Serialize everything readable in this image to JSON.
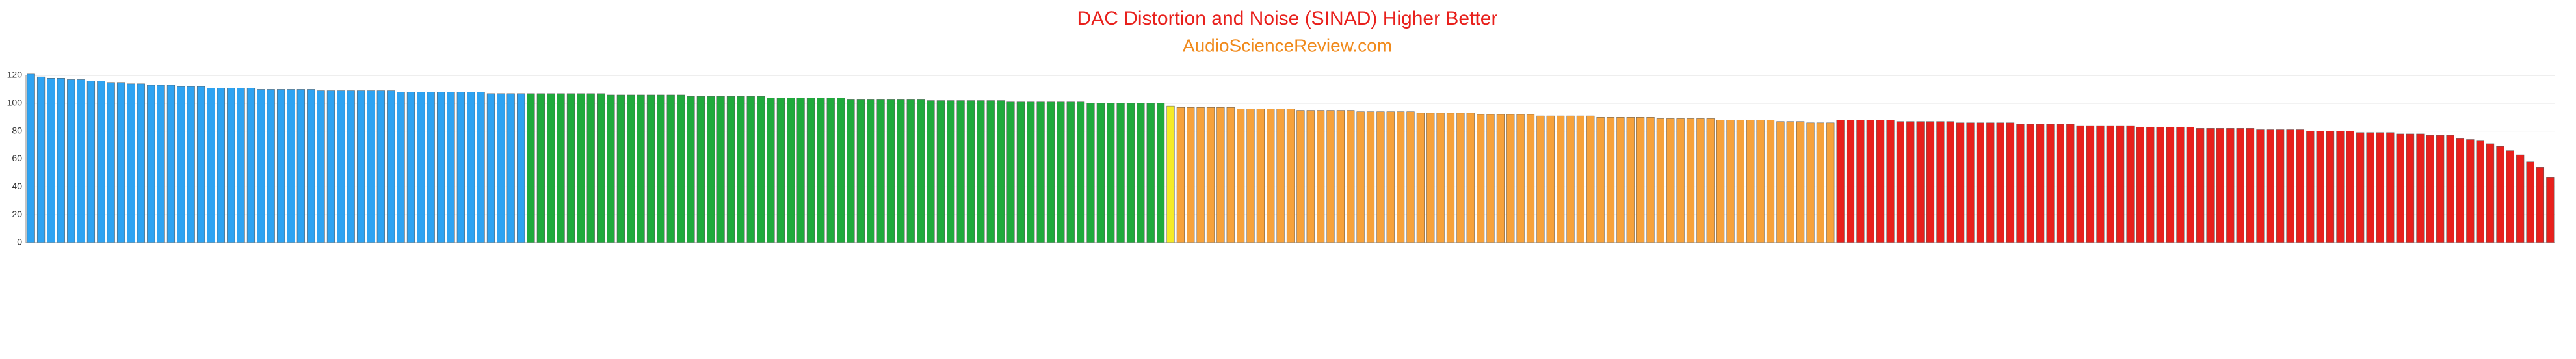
{
  "chart_data": {
    "type": "bar",
    "title": "DAC Distortion and Noise (SINAD) Higher Better",
    "subtitle": "AudioScienceReview.com",
    "ylim": [
      0,
      120
    ],
    "yticks": [
      0,
      20,
      40,
      60,
      80,
      100,
      120
    ],
    "grid": true,
    "groups": [
      {
        "color": "#2ea3f2",
        "values": [
          121,
          119,
          118,
          118,
          117,
          117,
          116,
          116,
          115,
          115,
          114,
          114,
          113,
          113,
          113,
          112,
          112,
          112,
          111,
          111,
          111,
          111,
          111,
          110,
          110,
          110,
          110,
          110,
          110,
          109,
          109,
          109,
          109,
          109,
          109,
          109,
          109,
          108,
          108,
          108,
          108,
          108,
          108,
          108,
          108,
          108,
          107,
          107,
          107,
          107
        ]
      },
      {
        "color": "#1faa3c",
        "values": [
          107,
          107,
          107,
          107,
          107,
          107,
          107,
          107,
          106,
          106,
          106,
          106,
          106,
          106,
          106,
          106,
          105,
          105,
          105,
          105,
          105,
          105,
          105,
          105,
          104,
          104,
          104,
          104,
          104,
          104,
          104,
          104,
          103,
          103,
          103,
          103,
          103,
          103,
          103,
          103,
          102,
          102,
          102,
          102,
          102,
          102,
          102,
          102,
          101,
          101,
          101,
          101,
          101,
          101,
          101,
          101,
          100,
          100,
          100,
          100,
          100,
          100,
          100,
          100
        ]
      },
      {
        "color": "#f5ea26",
        "values": [
          98
        ]
      },
      {
        "color": "#f7a23b",
        "values": [
          97,
          97,
          97,
          97,
          97,
          97,
          96,
          96,
          96,
          96,
          96,
          96,
          95,
          95,
          95,
          95,
          95,
          95,
          94,
          94,
          94,
          94,
          94,
          94,
          93,
          93,
          93,
          93,
          93,
          93,
          92,
          92,
          92,
          92,
          92,
          92,
          91,
          91,
          91,
          91,
          91,
          91,
          90,
          90,
          90,
          90,
          90,
          90,
          89,
          89,
          89,
          89,
          89,
          89,
          88,
          88,
          88,
          88,
          88,
          88,
          87,
          87,
          87,
          86,
          86,
          86
        ]
      },
      {
        "color": "#e8201c",
        "values": [
          88,
          88,
          88,
          88,
          88,
          88,
          87,
          87,
          87,
          87,
          87,
          87,
          86,
          86,
          86,
          86,
          86,
          86,
          85,
          85,
          85,
          85,
          85,
          85,
          84,
          84,
          84,
          84,
          84,
          84,
          83,
          83,
          83,
          83,
          83,
          83,
          82,
          82,
          82,
          82,
          82,
          82,
          81,
          81,
          81,
          81,
          81,
          80,
          80,
          80,
          80,
          80,
          79,
          79,
          79,
          79,
          78,
          78,
          78,
          77,
          77,
          77,
          75,
          74,
          73,
          71,
          69,
          66,
          63,
          58,
          54,
          47
        ]
      }
    ]
  }
}
